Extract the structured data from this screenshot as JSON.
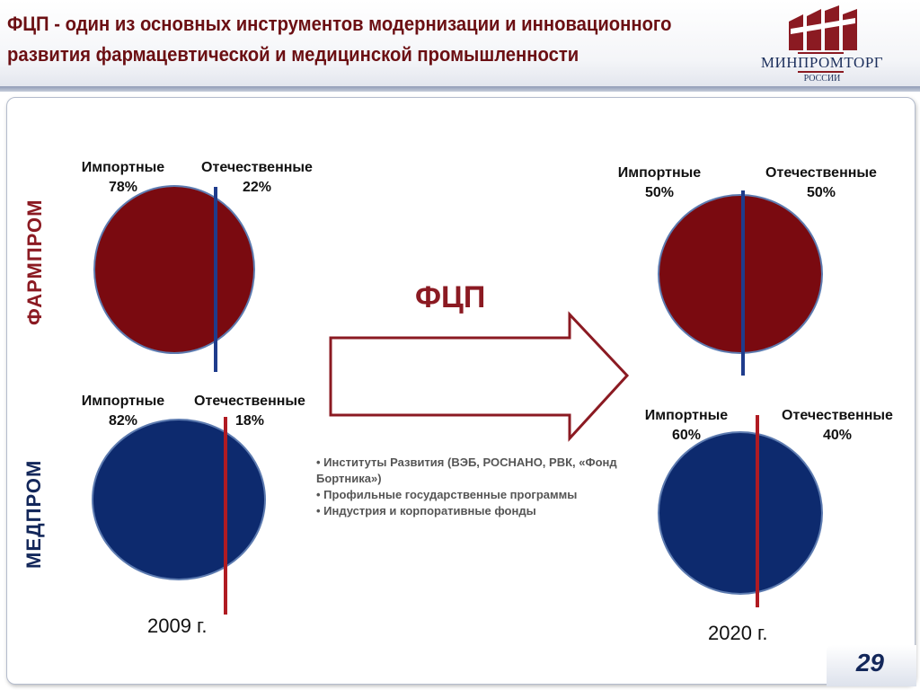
{
  "title": {
    "line1": "ФЦП  - один из основных инструментов  модернизации и инновационного",
    "line2": "развития фармацевтической и медицинской промышленности"
  },
  "logo": {
    "text_main_a": "МИН",
    "text_main_b": "ПРОМ",
    "text_main_c": "ТОРГ",
    "text_sub": "РОССИИ"
  },
  "side_labels": {
    "pharma": "ФАРМПРОМ",
    "med": "МЕДПРОМ"
  },
  "center_label": "ФЦП",
  "pies": {
    "pharma_2009": {
      "imported_label": "Импортные",
      "imported_pct": "78%",
      "domestic_label": "Отечественные",
      "domestic_pct": "22%"
    },
    "med_2009": {
      "imported_label": "Импортные",
      "imported_pct": "82%",
      "domestic_label": "Отечественные",
      "domestic_pct": "18%"
    },
    "pharma_2020": {
      "imported_label": "Импортные",
      "imported_pct": "50%",
      "domestic_label": "Отечественные",
      "domestic_pct": "50%"
    },
    "med_2020": {
      "imported_label": "Импортные",
      "imported_pct": "60%",
      "domestic_label": "Отечественные",
      "domestic_pct": "40%"
    }
  },
  "bullets": [
    "•  Институты Развития   (ВЭБ, РОСНАНО, РВК, «Фонд Бортника»)",
    "•  Профильные  государственные программы",
    "•  Индустрия и корпоративные фонды"
  ],
  "years": {
    "left": "2009 г.",
    "right": "2020 г."
  },
  "page_number": "29",
  "colors": {
    "pharma": "#7a0a10",
    "med": "#0d2a6e",
    "title": "#6b0f13",
    "divider_blue": "#1f3c8c",
    "divider_red": "#b01b22"
  }
}
